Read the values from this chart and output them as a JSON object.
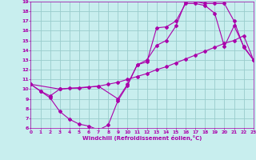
{
  "xlabel": "Windchill (Refroidissement éolien,°C)",
  "xlim": [
    0,
    23
  ],
  "ylim": [
    6,
    19
  ],
  "xticks": [
    0,
    1,
    2,
    3,
    4,
    5,
    6,
    7,
    8,
    9,
    10,
    11,
    12,
    13,
    14,
    15,
    16,
    17,
    18,
    19,
    20,
    21,
    22,
    23
  ],
  "yticks": [
    6,
    7,
    8,
    9,
    10,
    11,
    12,
    13,
    14,
    15,
    16,
    17,
    18,
    19
  ],
  "bg_color": "#c8eeee",
  "line_color": "#aa00aa",
  "grid_color": "#99cccc",
  "line1_x": [
    0,
    1,
    2,
    3,
    4,
    5,
    6,
    7,
    8,
    9,
    10,
    11,
    12,
    13,
    14,
    15,
    16,
    17,
    18,
    19,
    20,
    21,
    22,
    23
  ],
  "line1_y": [
    10.5,
    9.8,
    9.1,
    7.7,
    6.9,
    6.4,
    6.2,
    5.8,
    6.3,
    8.8,
    10.4,
    12.5,
    12.8,
    16.3,
    16.4,
    17.0,
    18.8,
    18.8,
    18.6,
    17.8,
    14.4,
    16.5,
    14.4,
    13.0
  ],
  "line2_x": [
    0,
    1,
    2,
    3,
    4,
    5,
    6,
    7,
    8,
    9,
    10,
    11,
    12,
    13,
    14,
    15,
    16,
    17,
    18,
    19,
    20,
    21,
    22,
    23
  ],
  "line2_y": [
    10.5,
    9.8,
    9.3,
    10.0,
    10.1,
    10.1,
    10.2,
    10.3,
    10.5,
    10.7,
    11.0,
    11.3,
    11.6,
    12.0,
    12.3,
    12.7,
    13.1,
    13.5,
    13.9,
    14.3,
    14.7,
    15.0,
    15.5,
    13.0
  ],
  "line3_x": [
    0,
    3,
    7,
    9,
    10,
    11,
    12,
    13,
    14,
    15,
    16,
    17,
    18,
    19,
    20,
    21,
    22,
    23
  ],
  "line3_y": [
    10.5,
    10.0,
    10.3,
    9.0,
    10.5,
    12.5,
    13.0,
    14.5,
    15.0,
    16.5,
    19.0,
    19.0,
    18.8,
    18.8,
    18.8,
    17.0,
    14.3,
    13.0
  ]
}
